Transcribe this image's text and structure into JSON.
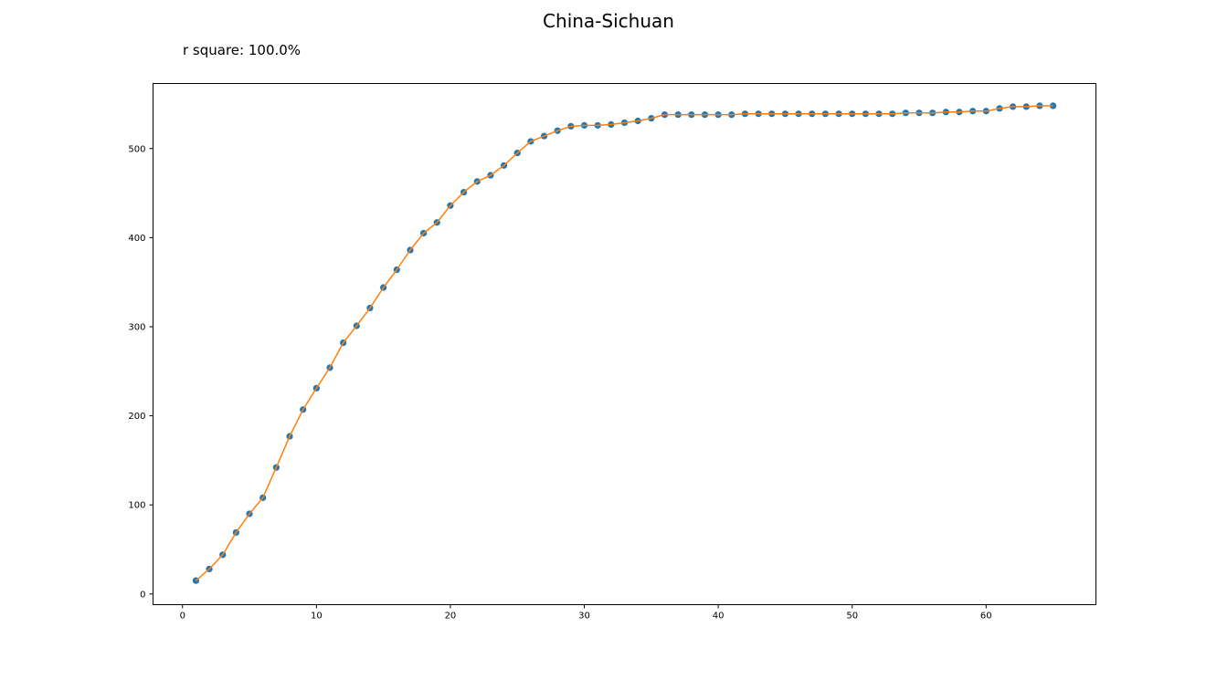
{
  "chart_data": {
    "type": "scatter",
    "title": "China-Sichuan",
    "subtitle": "r square: 100.0%",
    "xlabel": "",
    "ylabel": "",
    "xlim": [
      -2.2,
      68.2
    ],
    "ylim": [
      -12,
      573
    ],
    "x_ticks": [
      0,
      10,
      20,
      30,
      40,
      50,
      60
    ],
    "y_ticks": [
      0,
      100,
      200,
      300,
      400,
      500
    ],
    "grid": false,
    "colors": {
      "points": "#1f77b4",
      "fit_line": "#ff7f0e"
    },
    "series": [
      {
        "kind": "points",
        "x": [
          1,
          2,
          3,
          4,
          5,
          6,
          7,
          8,
          9,
          10,
          11,
          12,
          13,
          14,
          15,
          16,
          17,
          18,
          19,
          20,
          21,
          22,
          23,
          24,
          25,
          26,
          27,
          28,
          29,
          30,
          31,
          32,
          33,
          34,
          35,
          36,
          37,
          38,
          39,
          40,
          41,
          42,
          43,
          44,
          45,
          46,
          47,
          48,
          49,
          50,
          51,
          52,
          53,
          54,
          55,
          56,
          57,
          58,
          59,
          60,
          61,
          62,
          63,
          64,
          65
        ],
        "y": [
          15,
          28,
          44,
          69,
          90,
          108,
          142,
          177,
          207,
          231,
          254,
          282,
          301,
          321,
          344,
          364,
          386,
          405,
          417,
          436,
          451,
          463,
          470,
          481,
          495,
          508,
          514,
          520,
          525,
          526,
          526,
          527,
          529,
          531,
          534,
          538,
          538,
          538,
          538,
          538,
          538,
          539,
          539,
          539,
          539,
          539,
          539,
          539,
          539,
          539,
          539,
          539,
          539,
          540,
          540,
          540,
          541,
          541,
          542,
          542,
          545,
          547,
          547,
          548,
          548
        ]
      },
      {
        "kind": "fit_line",
        "x": [
          1,
          2,
          3,
          4,
          5,
          6,
          7,
          8,
          9,
          10,
          11,
          12,
          13,
          14,
          15,
          16,
          17,
          18,
          19,
          20,
          21,
          22,
          23,
          24,
          25,
          26,
          27,
          28,
          29,
          30,
          31,
          32,
          33,
          34,
          35,
          36,
          37,
          38,
          39,
          40,
          41,
          42,
          43,
          44,
          45,
          46,
          47,
          48,
          49,
          50,
          51,
          52,
          53,
          54,
          55,
          56,
          57,
          58,
          59,
          60,
          61,
          62,
          63,
          64,
          65
        ],
        "y": [
          15,
          28,
          44,
          69,
          90,
          108,
          142,
          177,
          207,
          231,
          254,
          282,
          301,
          321,
          344,
          364,
          386,
          405,
          417,
          436,
          451,
          463,
          470,
          481,
          495,
          508,
          514,
          520,
          525,
          526,
          526,
          527,
          529,
          531,
          534,
          538,
          538,
          538,
          538,
          538,
          538,
          539,
          539,
          539,
          539,
          539,
          539,
          539,
          539,
          539,
          539,
          539,
          539,
          540,
          540,
          540,
          541,
          541,
          542,
          542,
          545,
          547,
          547,
          548,
          548
        ]
      }
    ]
  }
}
